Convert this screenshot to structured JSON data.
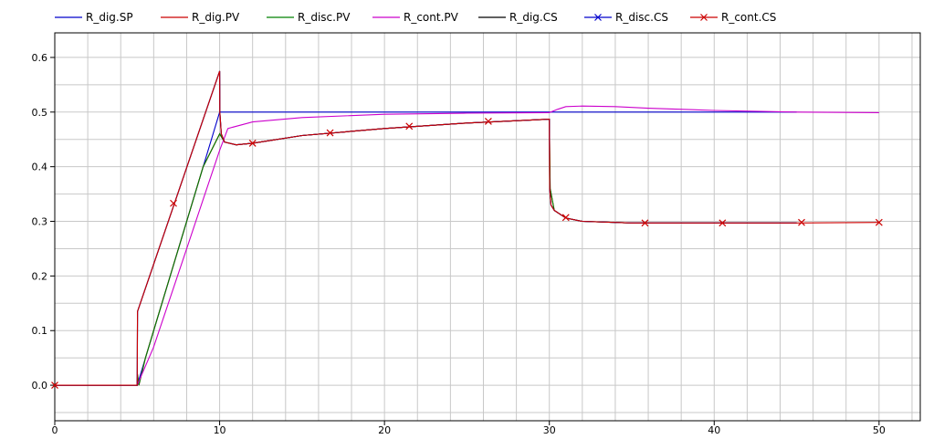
{
  "chart_data": {
    "type": "line",
    "title": "",
    "xlabel": "",
    "ylabel": "",
    "xlim": [
      0,
      52.5
    ],
    "ylim": [
      -0.065,
      0.645
    ],
    "xticks": [
      0,
      10,
      20,
      30,
      40,
      50
    ],
    "yticks": [
      0.0,
      0.1,
      0.2,
      0.3,
      0.4,
      0.5,
      0.6
    ],
    "xtick_labels": [
      "0",
      "10",
      "20",
      "30",
      "40",
      "50"
    ],
    "ytick_labels": [
      "0.0",
      "0.1",
      "0.2",
      "0.3",
      "0.4",
      "0.5",
      "0.6"
    ],
    "grid": true,
    "legend_position": "top",
    "series": [
      {
        "name": "R_dig.SP",
        "color": "#0000cc",
        "marker": "none",
        "x": [
          0,
          5,
          10,
          45
        ],
        "y": [
          0,
          0,
          0.5,
          0.5
        ]
      },
      {
        "name": "R_dig.PV",
        "color": "#cc0000",
        "marker": "none",
        "x": [
          0,
          5,
          5.02,
          5.1,
          5.5,
          6,
          7,
          8,
          9,
          10,
          10.1,
          10.3,
          11,
          12,
          15,
          20,
          25,
          30,
          30.05,
          30.3,
          31,
          32,
          35,
          40,
          45
        ],
        "y": [
          0,
          0,
          0.02,
          0.0,
          0.05,
          0.1,
          0.2,
          0.3,
          0.4,
          0.46,
          0.455,
          0.445,
          0.44,
          0.443,
          0.457,
          0.47,
          0.48,
          0.487,
          0.36,
          0.32,
          0.306,
          0.3,
          0.297,
          0.297,
          0.297
        ]
      },
      {
        "name": "R_disc.PV",
        "color": "#008000",
        "marker": "none",
        "x": [
          0,
          5,
          5.02,
          5.1,
          5.5,
          6,
          7,
          8,
          9,
          10,
          10.1,
          10.3,
          11,
          12,
          15,
          20,
          25,
          30,
          30.05,
          30.3,
          31,
          32,
          35,
          40,
          45
        ],
        "y": [
          0,
          0,
          0.02,
          0.0,
          0.05,
          0.1,
          0.2,
          0.3,
          0.4,
          0.46,
          0.455,
          0.445,
          0.44,
          0.443,
          0.457,
          0.47,
          0.48,
          0.487,
          0.36,
          0.32,
          0.306,
          0.3,
          0.297,
          0.297,
          0.297
        ]
      },
      {
        "name": "R_cont.PV",
        "color": "#cc00cc",
        "marker": "none",
        "x": [
          0,
          5,
          6,
          7,
          8,
          9,
          10,
          10.5,
          12,
          15,
          20,
          25,
          30,
          30.5,
          31,
          32,
          34,
          36,
          40,
          45,
          50
        ],
        "y": [
          0,
          0,
          0.07,
          0.16,
          0.25,
          0.34,
          0.43,
          0.47,
          0.482,
          0.49,
          0.496,
          0.498,
          0.499,
          0.505,
          0.51,
          0.511,
          0.51,
          0.507,
          0.503,
          0.5,
          0.499
        ]
      },
      {
        "name": "R_dig.CS",
        "color": "#000000",
        "marker": "none",
        "x": [
          0,
          5,
          5.02,
          10,
          10.01,
          10.1,
          10.3,
          11,
          12,
          15,
          20,
          25,
          30,
          30.02,
          30.1,
          30.3,
          31,
          32,
          35,
          40,
          45
        ],
        "y": [
          0,
          0,
          0.135,
          0.575,
          0.5,
          0.46,
          0.445,
          0.44,
          0.443,
          0.457,
          0.47,
          0.48,
          0.487,
          0.36,
          0.33,
          0.32,
          0.306,
          0.3,
          0.297,
          0.297,
          0.297
        ]
      },
      {
        "name": "R_disc.CS",
        "color": "#0000cc",
        "marker": "x",
        "x": [
          0,
          5,
          5.02,
          10,
          10.01,
          10.1,
          10.3,
          11,
          12,
          15,
          20,
          25,
          30,
          30.02,
          30.1,
          30.3,
          31,
          32,
          35,
          40,
          45
        ],
        "y": [
          0,
          0,
          0.135,
          0.575,
          0.5,
          0.46,
          0.445,
          0.44,
          0.443,
          0.457,
          0.47,
          0.48,
          0.487,
          0.36,
          0.33,
          0.32,
          0.306,
          0.3,
          0.297,
          0.297,
          0.297
        ]
      },
      {
        "name": "R_cont.CS",
        "color": "#cc0000",
        "marker": "x",
        "x": [
          0,
          5,
          5.02,
          10,
          10.01,
          10.1,
          10.3,
          11,
          12,
          15,
          20,
          25,
          30,
          30.02,
          30.1,
          30.3,
          31,
          32,
          35,
          40,
          45,
          50
        ],
        "y": [
          0,
          0,
          0.135,
          0.575,
          0.5,
          0.46,
          0.445,
          0.44,
          0.443,
          0.457,
          0.47,
          0.48,
          0.487,
          0.36,
          0.33,
          0.32,
          0.306,
          0.3,
          0.297,
          0.297,
          0.297,
          0.298
        ],
        "markers_x": [
          0,
          7.2,
          12.0,
          16.7,
          21.5,
          26.3,
          31.0,
          35.8,
          40.5,
          45.3,
          50
        ],
        "markers_y": [
          0,
          0.333,
          0.443,
          0.462,
          0.474,
          0.483,
          0.307,
          0.297,
          0.297,
          0.298,
          0.298
        ]
      }
    ]
  }
}
